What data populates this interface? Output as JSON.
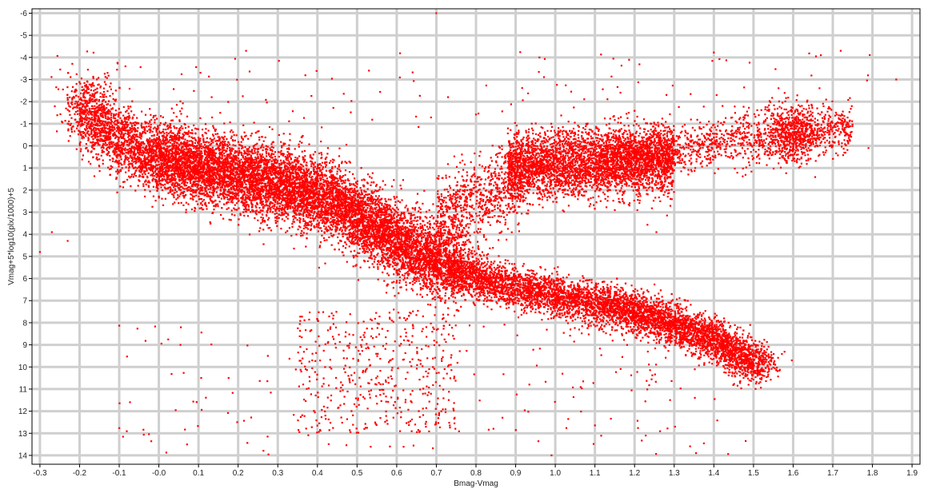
{
  "chart_data": {
    "type": "scatter",
    "title": "",
    "xlabel": "Bmag-Vmag",
    "ylabel": "Vmag+5*log10(plx/1000)+5",
    "xlim": [
      -0.32,
      1.92
    ],
    "ylim": [
      14.4,
      -6.2
    ],
    "y_inverted": true,
    "grid": true,
    "legend": "none",
    "x_ticks": [
      "-0.3",
      "-0.2",
      "-0.1",
      "-0.0",
      "0.1",
      "0.2",
      "0.3",
      "0.4",
      "0.5",
      "0.6",
      "0.7",
      "0.8",
      "0.9",
      "1.0",
      "1.1",
      "1.2",
      "1.3",
      "1.4",
      "1.5",
      "1.6",
      "1.7",
      "1.8",
      "1.9"
    ],
    "y_ticks": [
      "-6",
      "-5",
      "-4",
      "-3",
      "-2",
      "-1",
      "0",
      "1",
      "2",
      "3",
      "4",
      "5",
      "6",
      "7",
      "8",
      "9",
      "10",
      "11",
      "12",
      "13",
      "14"
    ],
    "marker_color": "#ff0000",
    "point_count_estimate": 20000,
    "series": [
      {
        "region": "main-sequence",
        "x": [
          -0.2,
          -0.15,
          -0.1,
          -0.05,
          0.0,
          0.05,
          0.1,
          0.15,
          0.2,
          0.25,
          0.3,
          0.35,
          0.4,
          0.45,
          0.5,
          0.55,
          0.6,
          0.65,
          0.7,
          0.75,
          0.8,
          0.85,
          0.9,
          0.95,
          1.0,
          1.05,
          1.1,
          1.15,
          1.2,
          1.25,
          1.3,
          1.35,
          1.4,
          1.45,
          1.5
        ],
        "y": [
          -2.0,
          -1.0,
          -0.3,
          0.2,
          0.6,
          0.9,
          1.1,
          1.3,
          1.5,
          1.7,
          1.9,
          2.1,
          2.4,
          2.8,
          3.3,
          3.9,
          4.5,
          5.0,
          5.4,
          5.7,
          6.0,
          6.2,
          6.4,
          6.6,
          6.8,
          7.0,
          7.1,
          7.3,
          7.5,
          7.8,
          8.1,
          8.4,
          8.8,
          9.3,
          9.9
        ]
      },
      {
        "region": "red-clump",
        "x": [
          0.88,
          0.95,
          1.0,
          1.05,
          1.1
        ],
        "y": [
          0.8,
          0.8,
          0.9,
          1.0,
          1.1
        ]
      },
      {
        "region": "giant-branch",
        "x": [
          1.1,
          1.2,
          1.3,
          1.4,
          1.5,
          1.6,
          1.7
        ],
        "y": [
          0.8,
          0.5,
          0.1,
          -0.2,
          -0.4,
          -0.6,
          -0.8
        ]
      },
      {
        "region": "red-giant-tip",
        "x": [
          1.55,
          1.58,
          1.6,
          1.62,
          1.65
        ],
        "y": [
          -0.8,
          -0.6,
          -0.5,
          -0.7,
          -0.9
        ]
      },
      {
        "region": "white-dwarfs-and-outliers",
        "x": [
          0.0,
          0.1,
          0.2,
          0.3,
          0.4,
          0.5,
          0.6,
          0.7,
          0.8,
          0.9,
          1.0,
          1.1,
          1.2,
          1.3
        ],
        "y": [
          11.5,
          12.0,
          12.3,
          12.4,
          12.0,
          11.5,
          11.0,
          11.5,
          11.5,
          12.0,
          11.0,
          11.8,
          12.0,
          12.0
        ]
      }
    ]
  }
}
